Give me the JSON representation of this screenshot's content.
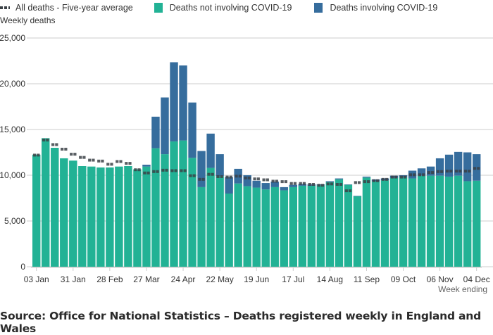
{
  "legend": {
    "average_label": "All deaths - Five-year average",
    "non_covid_label": "Deaths not involving COVID-19",
    "covid_label": "Deaths involving COVID-19"
  },
  "source_text": "Source: Office for National Statistics – Deaths registered weekly in England and Wales",
  "colors": {
    "non_covid": "#22b295",
    "covid": "#366d9d",
    "average": "#3b4146",
    "grid": "#cccccc"
  },
  "chart_data": {
    "type": "bar",
    "stacked": true,
    "title": "",
    "ylabel": "Weekly deaths",
    "xlabel": "Week ending",
    "ylim": [
      0,
      25000
    ],
    "yticks": [
      0,
      5000,
      10000,
      15000,
      20000,
      25000
    ],
    "ytick_labels": [
      "0",
      "5,000",
      "10,000",
      "15,000",
      "20,000",
      "25,000"
    ],
    "grid": true,
    "legend_position": "top-left",
    "x_tick_labels": [
      "03 Jan",
      "31 Jan",
      "28 Feb",
      "27 Mar",
      "24 Apr",
      "22 May",
      "19 Jun",
      "17 Jul",
      "14 Aug",
      "11 Sep",
      "09 Oct",
      "06 Nov",
      "04 Dec"
    ],
    "x_tick_every": 4,
    "categories": [
      "03 Jan",
      "10 Jan",
      "17 Jan",
      "24 Jan",
      "31 Jan",
      "07 Feb",
      "14 Feb",
      "21 Feb",
      "28 Feb",
      "06 Mar",
      "13 Mar",
      "20 Mar",
      "27 Mar",
      "03 Apr",
      "10 Apr",
      "17 Apr",
      "24 Apr",
      "01 May",
      "08 May",
      "15 May",
      "22 May",
      "29 May",
      "05 Jun",
      "12 Jun",
      "19 Jun",
      "26 Jun",
      "03 Jul",
      "10 Jul",
      "17 Jul",
      "24 Jul",
      "31 Jul",
      "07 Aug",
      "14 Aug",
      "21 Aug",
      "28 Aug",
      "04 Sep",
      "11 Sep",
      "18 Sep",
      "25 Sep",
      "02 Oct",
      "09 Oct",
      "16 Oct",
      "23 Oct",
      "30 Oct",
      "06 Nov",
      "13 Nov",
      "20 Nov",
      "27 Nov",
      "04 Dec"
    ],
    "series": [
      {
        "name": "Deaths not involving COVID-19",
        "values": [
          12250,
          14050,
          13000,
          11850,
          11600,
          11000,
          10950,
          10850,
          10850,
          10950,
          11000,
          10650,
          10950,
          12950,
          12300,
          13700,
          13800,
          11900,
          8700,
          10800,
          9900,
          8000,
          9100,
          8800,
          8650,
          8450,
          8700,
          8350,
          8700,
          8850,
          8850,
          8900,
          9250,
          9550,
          8950,
          7700,
          9750,
          9350,
          9450,
          9700,
          9800,
          9650,
          9950,
          9950,
          9950,
          9850,
          9950,
          9350,
          9400
        ]
      },
      {
        "name": "Deaths involving COVID-19",
        "values": [
          0,
          0,
          0,
          0,
          0,
          0,
          0,
          0,
          0,
          0,
          0,
          0,
          200,
          3450,
          6200,
          8650,
          8200,
          6050,
          3950,
          3750,
          2400,
          1800,
          1600,
          1200,
          750,
          700,
          600,
          350,
          250,
          200,
          150,
          100,
          100,
          100,
          50,
          50,
          100,
          200,
          200,
          250,
          200,
          850,
          800,
          1000,
          1900,
          2400,
          2600,
          3150,
          2900
        ]
      },
      {
        "name": "All deaths - Five-year average",
        "type": "line-dashed-markers",
        "values": [
          12200,
          13850,
          13350,
          12850,
          12300,
          11950,
          11650,
          11550,
          11200,
          11500,
          11300,
          10600,
          10250,
          10400,
          10550,
          10500,
          10500,
          9950,
          9550,
          10100,
          9850,
          9800,
          9900,
          9700,
          9600,
          9500,
          9350,
          9300,
          9100,
          9100,
          9000,
          8900,
          9050,
          9000,
          8300,
          9200,
          9300,
          9400,
          9550,
          9800,
          9800,
          10050,
          10050,
          10300,
          10400,
          10450,
          10450,
          10450,
          10750
        ]
      }
    ]
  }
}
